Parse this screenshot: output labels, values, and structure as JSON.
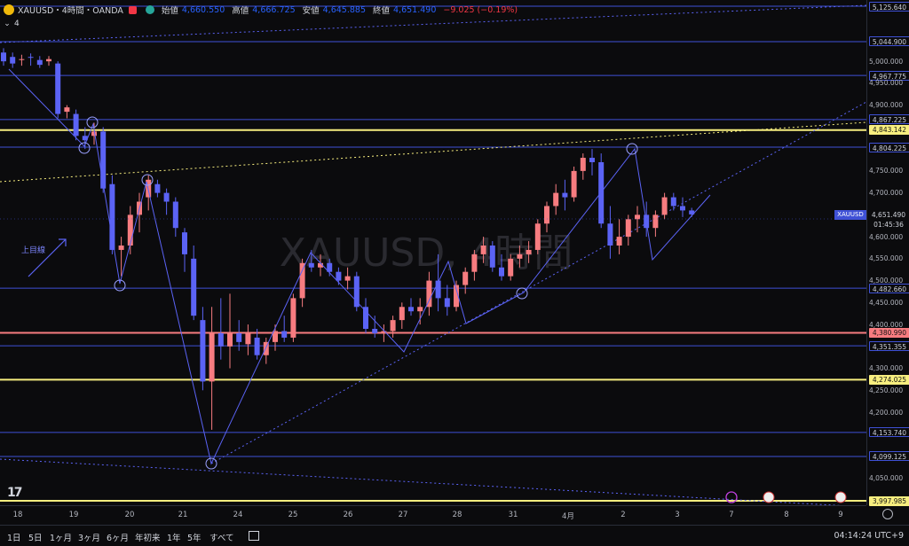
{
  "legend": {
    "symbol": "XAUUSD・4時間・OANDA",
    "open_label": "始値",
    "open": "4,660.550",
    "high_label": "高値",
    "high": "4,666.725",
    "low_label": "安値",
    "low": "4,645.885",
    "close_label": "終値",
    "close": "4,651.490",
    "change": "−9.025 (−0.19%)",
    "indicator_count": "4"
  },
  "watermark": "XAUUSD, 4時間",
  "annotation_text": "上目線",
  "price_lines": [
    {
      "value": 5125.64,
      "label": "5,125.640",
      "color": "blue"
    },
    {
      "value": 5044.9,
      "label": "5,044.900",
      "color": "blue"
    },
    {
      "value": 4967.775,
      "label": "4,967.775",
      "color": "blue"
    },
    {
      "value": 4867.225,
      "label": "4,867.225",
      "color": "blue"
    },
    {
      "value": 4843.142,
      "label": "4,843.142",
      "color": "yellow"
    },
    {
      "value": 4804.225,
      "label": "4,804.225",
      "color": "blue"
    },
    {
      "value": 4482.66,
      "label": "4,482.660",
      "color": "blue"
    },
    {
      "value": 4380.99,
      "label": "4,380.990",
      "color": "red"
    },
    {
      "value": 4351.355,
      "label": "4,351.355",
      "color": "blue"
    },
    {
      "value": 4274.025,
      "label": "4,274.025",
      "color": "yellow"
    },
    {
      "value": 4153.74,
      "label": "4,153.740",
      "color": "blue"
    },
    {
      "value": 4099.125,
      "label": "4,099.125",
      "color": "blue"
    },
    {
      "value": 3997.985,
      "label": "3,997.985",
      "color": "yellow"
    }
  ],
  "price_ticks": [
    "5,000.000",
    "4,950.000",
    "4,900.000",
    "4,750.000",
    "4,700.000",
    "4,600.000",
    "4,550.000",
    "4,500.000",
    "4,450.000",
    "4,400.000",
    "4,300.000",
    "4,250.000",
    "4,200.000",
    "4,050.000"
  ],
  "current_price": {
    "symbol": "XAUUSD",
    "value": "4,651.490",
    "countdown": "01:45:36"
  },
  "time_labels": [
    "18",
    "19",
    "20",
    "21",
    "24",
    "25",
    "26",
    "27",
    "28",
    "31",
    "4月",
    "2",
    "3",
    "7",
    "8",
    "9"
  ],
  "bottom_bar": {
    "ranges": [
      "1日",
      "5日",
      "1ヶ月",
      "3ヶ月",
      "6ヶ月",
      "年初来",
      "1年",
      "5年",
      "すべて"
    ],
    "clock": "04:14:24 UTC+9"
  },
  "colors": {
    "up": "#f77c80",
    "down": "#5b63f5",
    "blue_line": "#3f51d6",
    "yellow_line": "#f7ee7f",
    "red_line": "#f77c80"
  },
  "chart_data": {
    "type": "candlestick",
    "title": "XAUUSD・4時間・OANDA",
    "ylim": [
      3997.985,
      5125.64
    ],
    "x": [
      "18",
      "19",
      "20",
      "21",
      "24",
      "25",
      "26",
      "27",
      "28",
      "31",
      "4月",
      "2",
      "3",
      "7",
      "8",
      "9"
    ],
    "candles": [
      [
        5020,
        5030,
        4990,
        5000
      ],
      [
        5010,
        5020,
        4985,
        4995
      ],
      [
        5005,
        5015,
        4990,
        5005
      ],
      [
        5010,
        5018,
        4990,
        5008
      ],
      [
        5003,
        5012,
        4985,
        4992
      ],
      [
        5000,
        5012,
        4990,
        5005
      ],
      [
        4995,
        5000,
        4870,
        4880
      ],
      [
        4885,
        4900,
        4870,
        4895
      ],
      [
        4880,
        4890,
        4820,
        4830
      ],
      [
        4830,
        4850,
        4800,
        4820
      ],
      [
        4830,
        4860,
        4810,
        4840
      ],
      [
        4840,
        4850,
        4700,
        4710
      ],
      [
        4720,
        4740,
        4560,
        4570
      ],
      [
        4570,
        4600,
        4510,
        4580
      ],
      [
        4580,
        4670,
        4560,
        4650
      ],
      [
        4650,
        4700,
        4610,
        4680
      ],
      [
        4690,
        4740,
        4660,
        4730
      ],
      [
        4720,
        4730,
        4690,
        4700
      ],
      [
        4700,
        4710,
        4650,
        4680
      ],
      [
        4680,
        4690,
        4600,
        4620
      ],
      [
        4610,
        4620,
        4520,
        4560
      ],
      [
        4550,
        4580,
        4410,
        4420
      ],
      [
        4410,
        4440,
        4250,
        4270
      ],
      [
        4270,
        4440,
        4160,
        4380
      ],
      [
        4380,
        4460,
        4320,
        4350
      ],
      [
        4350,
        4470,
        4300,
        4380
      ],
      [
        4380,
        4410,
        4340,
        4360
      ],
      [
        4355,
        4400,
        4330,
        4380
      ],
      [
        4370,
        4390,
        4320,
        4330
      ],
      [
        4330,
        4370,
        4310,
        4360
      ],
      [
        4360,
        4400,
        4340,
        4385
      ],
      [
        4385,
        4420,
        4360,
        4370
      ],
      [
        4370,
        4470,
        4360,
        4460
      ],
      [
        4460,
        4550,
        4440,
        4540
      ],
      [
        4540,
        4570,
        4520,
        4530
      ],
      [
        4530,
        4560,
        4510,
        4540
      ],
      [
        4540,
        4550,
        4510,
        4520
      ],
      [
        4520,
        4530,
        4490,
        4500
      ],
      [
        4500,
        4530,
        4480,
        4510
      ],
      [
        4510,
        4520,
        4430,
        4440
      ],
      [
        4440,
        4460,
        4380,
        4390
      ],
      [
        4390,
        4420,
        4370,
        4380
      ],
      [
        4380,
        4400,
        4360,
        4385
      ],
      [
        4385,
        4420,
        4370,
        4410
      ],
      [
        4410,
        4450,
        4390,
        4440
      ],
      [
        4440,
        4460,
        4420,
        4430
      ],
      [
        4430,
        4460,
        4400,
        4440
      ],
      [
        4440,
        4520,
        4420,
        4500
      ],
      [
        4500,
        4560,
        4430,
        4460
      ],
      [
        4460,
        4490,
        4420,
        4440
      ],
      [
        4440,
        4500,
        4430,
        4490
      ],
      [
        4490,
        4530,
        4470,
        4520
      ],
      [
        4520,
        4570,
        4500,
        4560
      ],
      [
        4560,
        4600,
        4540,
        4580
      ],
      [
        4580,
        4590,
        4520,
        4530
      ],
      [
        4530,
        4560,
        4500,
        4510
      ],
      [
        4510,
        4560,
        4500,
        4550
      ],
      [
        4550,
        4580,
        4530,
        4560
      ],
      [
        4560,
        4590,
        4540,
        4570
      ],
      [
        4570,
        4640,
        4560,
        4630
      ],
      [
        4630,
        4680,
        4610,
        4670
      ],
      [
        4670,
        4720,
        4650,
        4700
      ],
      [
        4700,
        4730,
        4660,
        4690
      ],
      [
        4690,
        4760,
        4680,
        4750
      ],
      [
        4750,
        4790,
        4730,
        4780
      ],
      [
        4780,
        4800,
        4740,
        4770
      ],
      [
        4770,
        4790,
        4620,
        4630
      ],
      [
        4630,
        4670,
        4550,
        4580
      ],
      [
        4580,
        4640,
        4560,
        4600
      ],
      [
        4600,
        4650,
        4580,
        4640
      ],
      [
        4640,
        4670,
        4610,
        4650
      ],
      [
        4650,
        4680,
        4600,
        4620
      ],
      [
        4620,
        4660,
        4600,
        4650
      ],
      [
        4650,
        4700,
        4640,
        4690
      ],
      [
        4690,
        4700,
        4660,
        4670
      ],
      [
        4670,
        4690,
        4645,
        4660
      ],
      [
        4660,
        4666,
        4645,
        4651
      ]
    ]
  }
}
